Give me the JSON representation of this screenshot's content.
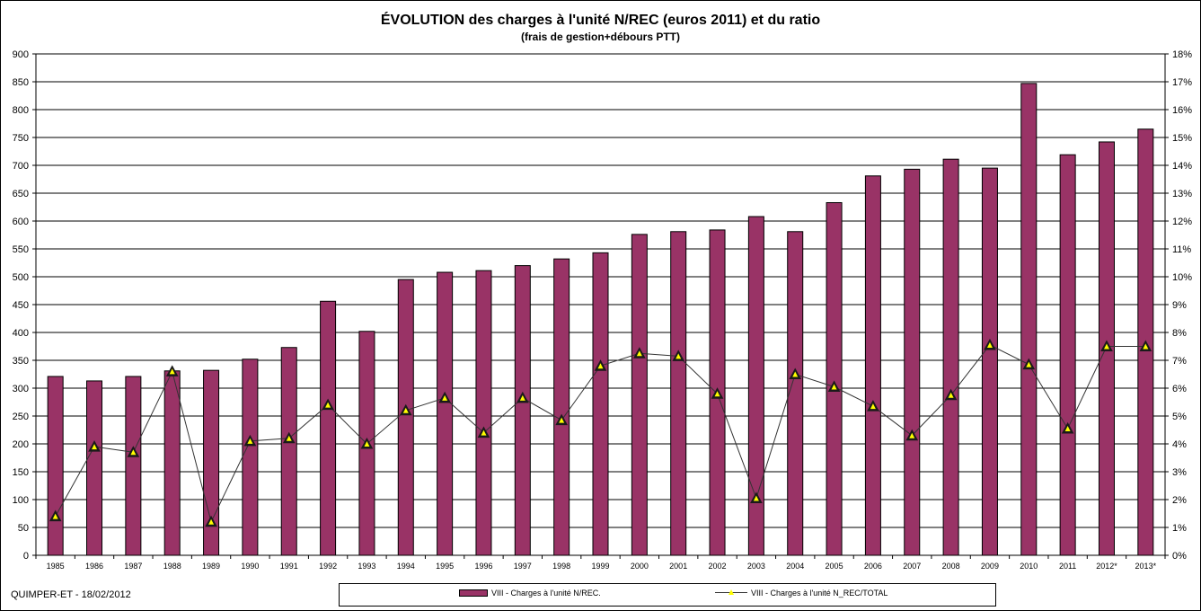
{
  "chart_data": {
    "type": "bar",
    "title": "ÉVOLUTION  des charges à l'unité N/REC (euros 2011) et du ratio",
    "subtitle": "(frais de gestion+débours PTT)",
    "categories": [
      "1985",
      "1986",
      "1987",
      "1988",
      "1989",
      "1990",
      "1991",
      "1992",
      "1993",
      "1994",
      "1995",
      "1996",
      "1997",
      "1998",
      "1999",
      "2000",
      "2001",
      "2002",
      "2003",
      "2004",
      "2005",
      "2006",
      "2007",
      "2008",
      "2009",
      "2010",
      "2011",
      "2012*",
      "2013*"
    ],
    "series": [
      {
        "name": "VIII - Charges à l'unité N/REC.",
        "type": "bar",
        "axis": "left",
        "color": "#993366",
        "values": [
          321,
          313,
          321,
          331,
          332,
          352,
          373,
          456,
          402,
          495,
          508,
          511,
          520,
          532,
          543,
          576,
          581,
          584,
          608,
          581,
          633,
          681,
          693,
          711,
          695,
          847,
          719,
          742,
          765
        ]
      },
      {
        "name": "VIII - Charges à l'unité N_REC/TOTAL",
        "type": "line",
        "axis": "right",
        "color": "#333333",
        "marker_color": "#ffff00",
        "values": [
          1.4,
          3.9,
          3.7,
          6.6,
          1.2,
          4.1,
          4.2,
          5.4,
          4.0,
          5.2,
          5.65,
          4.4,
          5.65,
          4.85,
          6.8,
          7.25,
          7.15,
          5.8,
          2.05,
          6.5,
          6.05,
          5.35,
          4.3,
          5.75,
          7.55,
          6.85,
          4.55,
          7.5,
          7.5
        ]
      }
    ],
    "ylim": [
      0,
      900
    ],
    "y_ticks": [
      "0",
      "50",
      "100",
      "150",
      "200",
      "250",
      "300",
      "350",
      "400",
      "450",
      "500",
      "550",
      "600",
      "650",
      "700",
      "750",
      "800",
      "850",
      "900"
    ],
    "y2lim": [
      0,
      18
    ],
    "y2_ticks": [
      "0%",
      "1%",
      "2%",
      "3%",
      "4%",
      "5%",
      "6%",
      "7%",
      "8%",
      "9%",
      "10%",
      "11%",
      "12%",
      "13%",
      "14%",
      "15%",
      "16%",
      "17%",
      "18%"
    ],
    "grid": true,
    "legend_position": "bottom"
  },
  "footer": "QUIMPER-ET -  18/02/2012"
}
